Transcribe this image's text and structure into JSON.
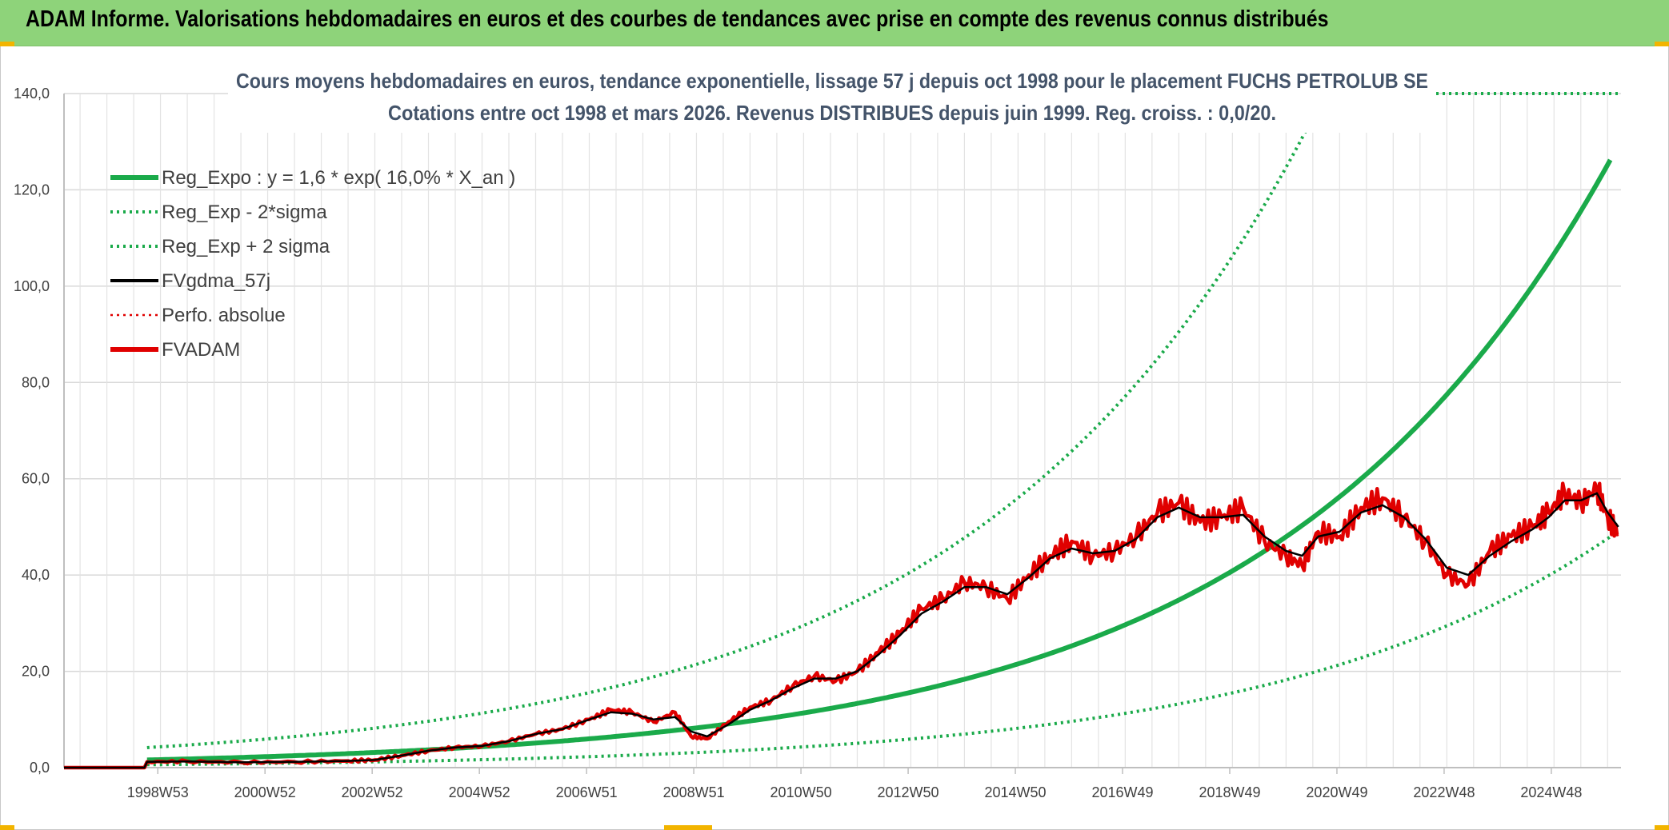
{
  "header": {
    "title": "ADAM Informe. Valorisations hebdomadaires en euros et des courbes de tendances avec prise en compte des revenus connus distribués"
  },
  "chart_data": {
    "type": "line",
    "title_line1": "Cours moyens hebdomadaires en euros, tendance exponentielle, lissage 57 j depuis oct 1998 pour le placement FUCHS PETROLUB SE",
    "title_line2": "Cotations entre oct 1998 et mars 2026. Revenus DISTRIBUES depuis juin 1999. Reg. croiss. : 0,0/20.",
    "ylim": [
      0,
      140
    ],
    "xlim": [
      1997.2,
      2026.25
    ],
    "yticks": [
      0,
      20,
      40,
      60,
      80,
      100,
      120,
      140
    ],
    "ytick_labels": [
      "0,0",
      "20,0",
      "40,0",
      "60,0",
      "80,0",
      "100,0",
      "120,0",
      "140,0"
    ],
    "xticks": [
      1998.95,
      2000.95,
      2002.95,
      2004.95,
      2006.95,
      2008.95,
      2010.95,
      2012.95,
      2014.95,
      2016.95,
      2018.95,
      2020.95,
      2022.95,
      2024.95
    ],
    "xtick_labels": [
      "1998W53",
      "2000W52",
      "2002W52",
      "2004W52",
      "2006W51",
      "2008W51",
      "2010W50",
      "2012W50",
      "2014W50",
      "2016W49",
      "2018W49",
      "2020W49",
      "2022W48",
      "2024W48"
    ],
    "legend": {
      "placement": "top-left",
      "entries": [
        {
          "label": "Reg_Expo : y = 1,6 * exp( 16,0% *  X_an )",
          "color": "#1aaa4a",
          "style": "solid-thick"
        },
        {
          "label": "Reg_Exp - 2*sigma",
          "color": "#1aaa4a",
          "style": "dotted"
        },
        {
          "label": "Reg_Exp + 2 sigma",
          "color": "#1aaa4a",
          "style": "dotted"
        },
        {
          "label": "FVgdma_57j",
          "color": "#000000",
          "style": "solid"
        },
        {
          "label": "Perfo. absolue",
          "color": "#e00000",
          "style": "dotted"
        },
        {
          "label": "FVADAM",
          "color": "#e00000",
          "style": "solid-thick"
        }
      ]
    },
    "regression": {
      "a": 1.6,
      "rate": 0.16,
      "start": 1998.75,
      "factor_minus_2sigma": 0.38,
      "factor_plus_2sigma": 2.6
    },
    "series": [
      {
        "name": "FVADAM",
        "x": [
          1997.2,
          1998.7,
          1998.75,
          1999.5,
          2000.5,
          2001.5,
          2002.5,
          2003.0,
          2003.5,
          2004.0,
          2004.5,
          2005.0,
          2005.5,
          2006.0,
          2006.5,
          2007.0,
          2007.4,
          2007.8,
          2008.2,
          2008.6,
          2008.9,
          2009.2,
          2009.6,
          2010.0,
          2010.4,
          2010.8,
          2011.2,
          2011.6,
          2012.0,
          2012.4,
          2012.8,
          2013.2,
          2013.6,
          2014.0,
          2014.4,
          2014.8,
          2015.2,
          2015.6,
          2016.0,
          2016.4,
          2016.8,
          2017.2,
          2017.6,
          2018.0,
          2018.4,
          2018.8,
          2019.2,
          2019.6,
          2020.0,
          2020.3,
          2020.6,
          2021.0,
          2021.4,
          2021.8,
          2022.2,
          2022.6,
          2023.0,
          2023.4,
          2023.8,
          2024.2,
          2024.6,
          2024.9,
          2025.2,
          2025.5,
          2025.8,
          2026.0,
          2026.2
        ],
        "values": [
          0,
          0,
          1.2,
          1.3,
          1.1,
          1.2,
          1.4,
          1.6,
          2.5,
          3.5,
          4.2,
          4.5,
          5.5,
          7.0,
          8.0,
          10.0,
          12.0,
          11.5,
          9.5,
          11.5,
          6.5,
          6.0,
          9.5,
          12.5,
          14.0,
          17.0,
          19.0,
          18.0,
          20.0,
          24.0,
          28.0,
          33.0,
          35.0,
          38.5,
          37.5,
          35.0,
          40.0,
          44.0,
          47.0,
          44.0,
          45.0,
          48.0,
          53.0,
          55.0,
          51.0,
          52.0,
          54.0,
          47.0,
          44.0,
          42.0,
          49.0,
          48.0,
          54.0,
          56.0,
          52.0,
          47.0,
          40.0,
          38.0,
          45.0,
          48.0,
          50.0,
          53.0,
          57.0,
          55.0,
          58.0,
          52.0,
          48.5
        ],
        "color": "#e00000"
      },
      {
        "name": "FVgdma_57j",
        "x": [
          1997.2,
          1998.7,
          1998.75,
          1999.5,
          2000.5,
          2001.5,
          2002.5,
          2003.0,
          2003.5,
          2004.0,
          2004.5,
          2005.0,
          2005.5,
          2006.0,
          2006.5,
          2007.0,
          2007.4,
          2007.8,
          2008.2,
          2008.6,
          2008.9,
          2009.2,
          2009.6,
          2010.0,
          2010.4,
          2010.8,
          2011.2,
          2011.6,
          2012.0,
          2012.4,
          2012.8,
          2013.2,
          2013.6,
          2014.0,
          2014.4,
          2014.8,
          2015.2,
          2015.6,
          2016.0,
          2016.4,
          2016.8,
          2017.2,
          2017.6,
          2018.0,
          2018.4,
          2018.8,
          2019.2,
          2019.6,
          2020.0,
          2020.3,
          2020.6,
          2021.0,
          2021.4,
          2021.8,
          2022.2,
          2022.6,
          2023.0,
          2023.4,
          2023.8,
          2024.2,
          2024.6,
          2024.9,
          2025.2,
          2025.5,
          2025.8,
          2026.0,
          2026.2
        ],
        "values": [
          0,
          0,
          1.2,
          1.3,
          1.1,
          1.2,
          1.4,
          1.6,
          2.5,
          3.5,
          4.2,
          4.5,
          5.5,
          7.0,
          8.0,
          10.0,
          11.5,
          11.2,
          10.0,
          10.5,
          7.5,
          6.5,
          9.0,
          12.0,
          14.0,
          16.5,
          18.5,
          18.5,
          20.0,
          23.5,
          27.5,
          32.0,
          34.5,
          37.5,
          37.5,
          36.0,
          39.5,
          43.5,
          45.5,
          44.5,
          45.0,
          47.5,
          52.0,
          54.0,
          52.0,
          52.0,
          52.5,
          48.0,
          45.0,
          44.0,
          48.0,
          49.0,
          53.0,
          54.5,
          52.0,
          47.5,
          41.5,
          40.0,
          44.0,
          47.0,
          49.5,
          52.0,
          55.5,
          55.5,
          57.0,
          53.0,
          50.0
        ],
        "color": "#000000"
      }
    ]
  }
}
